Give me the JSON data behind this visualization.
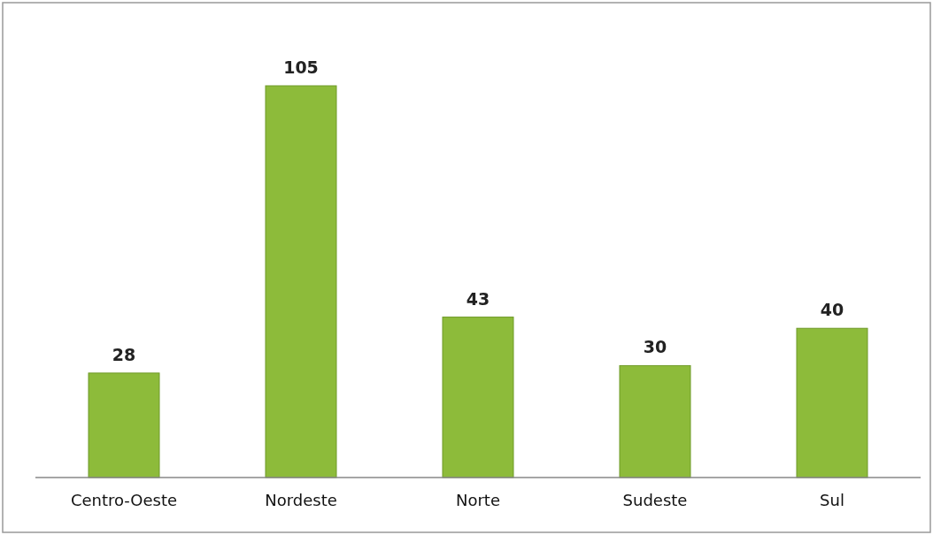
{
  "chart_data": {
    "type": "bar",
    "categories": [
      "Centro-Oeste",
      "Nordeste",
      "Norte",
      "Sudeste",
      "Sul"
    ],
    "values": [
      28,
      105,
      43,
      30,
      40
    ],
    "color": "#8dbb3a",
    "data_labels": true
  }
}
